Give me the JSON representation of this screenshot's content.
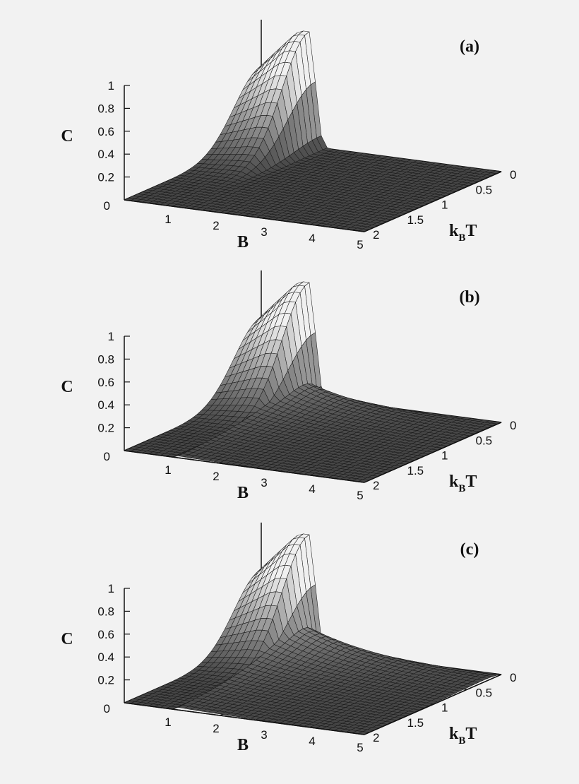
{
  "chart_data": [
    {
      "type": "surface",
      "panel_label": "(a)",
      "zlabel": "C",
      "xlabel": "B",
      "ylabel_main": "k",
      "ylabel_sub": "B",
      "ylabel_tail": "T",
      "zticks": [
        "0",
        "0.2",
        "0.4",
        "0.6",
        "0.8",
        "1"
      ],
      "xticks": [
        "1",
        "2",
        "3",
        "4",
        "5"
      ],
      "yticks": [
        "0",
        "0.5",
        "1",
        "1.5",
        "2"
      ],
      "xlim": [
        0,
        5
      ],
      "ylim": [
        0,
        2
      ],
      "zlim": [
        0,
        1
      ],
      "ridge_B": 1.0,
      "ridge_width": 0.55,
      "thermal_decay": 3.2,
      "tail_level": 0.0,
      "tail_decay": 1.2
    },
    {
      "type": "surface",
      "panel_label": "(b)",
      "zlabel": "C",
      "xlabel": "B",
      "ylabel_main": "k",
      "ylabel_sub": "B",
      "ylabel_tail": "T",
      "zticks": [
        "0",
        "0.2",
        "0.4",
        "0.6",
        "0.8",
        "1"
      ],
      "xticks": [
        "1",
        "2",
        "3",
        "4",
        "5"
      ],
      "yticks": [
        "0",
        "0.5",
        "1",
        "1.5",
        "2"
      ],
      "xlim": [
        0,
        5
      ],
      "ylim": [
        0,
        2
      ],
      "zlim": [
        0,
        1
      ],
      "ridge_B": 1.0,
      "ridge_width": 0.55,
      "thermal_decay": 3.2,
      "tail_level": 0.45,
      "tail_decay": 0.9
    },
    {
      "type": "surface",
      "panel_label": "(c)",
      "zlabel": "C",
      "xlabel": "B",
      "ylabel_main": "k",
      "ylabel_sub": "B",
      "ylabel_tail": "T",
      "zticks": [
        "0",
        "0.2",
        "0.4",
        "0.6",
        "0.8",
        "1"
      ],
      "xticks": [
        "1",
        "2",
        "3",
        "4",
        "5"
      ],
      "yticks": [
        "0",
        "0.5",
        "1",
        "1.5",
        "2"
      ],
      "xlim": [
        0,
        5
      ],
      "ylim": [
        0,
        2
      ],
      "zlim": [
        0,
        1
      ],
      "ridge_B": 1.0,
      "ridge_width": 0.55,
      "thermal_decay": 3.2,
      "tail_level": 0.6,
      "tail_decay": 0.7
    }
  ]
}
